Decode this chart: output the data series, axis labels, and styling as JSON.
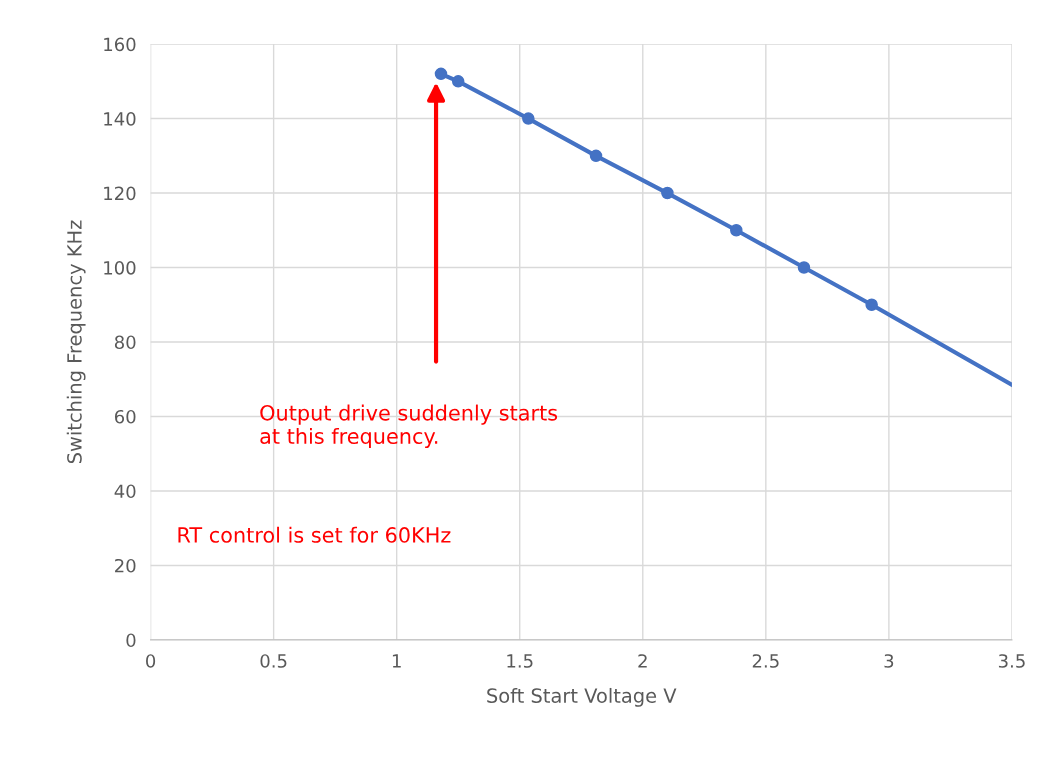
{
  "chart_data": {
    "type": "line",
    "xlabel": "Soft Start Voltage V",
    "ylabel": "Switching Frequency KHz",
    "series": [
      {
        "color": "#4472c4",
        "marker": "circle",
        "x": [
          1.18,
          1.25,
          1.535,
          1.81,
          2.1,
          2.38,
          2.655,
          2.93
        ],
        "values": [
          152,
          150,
          140,
          130,
          120,
          110,
          100,
          90
        ]
      },
      {
        "color": "#4472c4",
        "marker": "none",
        "x": [
          2.93,
          3.5
        ],
        "values": [
          90,
          68.5
        ]
      }
    ],
    "xlim": [
      0,
      3.5
    ],
    "xticks": [
      0,
      0.5,
      1,
      1.5,
      2,
      2.5,
      3,
      3.5
    ],
    "ylim": [
      0,
      160
    ],
    "yticks": [
      0,
      20,
      40,
      60,
      80,
      100,
      120,
      140,
      160
    ],
    "grid": true,
    "legend": false,
    "line_style": "solid",
    "annotations": [
      "Output drive suddenly starts\nat this frequency.",
      "RT control is set for 60KHz"
    ]
  }
}
